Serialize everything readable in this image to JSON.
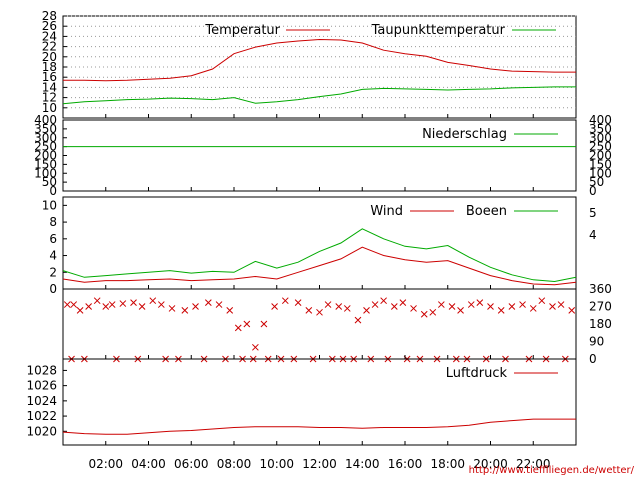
{
  "chart_data": [
    {
      "type": "line",
      "panel": "temperature",
      "ylim": [
        8,
        28
      ],
      "yticks": [
        "28",
        "26",
        "24",
        "22",
        "20",
        "18",
        "16",
        "14",
        "12",
        "10"
      ],
      "grid": true,
      "legend_position": "top",
      "series": [
        {
          "name": "Temperatur",
          "color": "#cc0000",
          "x": [
            0,
            1,
            2,
            3,
            4,
            5,
            6,
            7,
            8,
            9,
            10,
            11,
            12,
            13,
            14,
            15,
            16,
            17,
            18,
            19,
            20,
            21,
            22,
            23,
            24
          ],
          "values": [
            15.4,
            15.4,
            15.3,
            15.4,
            15.6,
            15.8,
            16.3,
            17.6,
            20.6,
            21.9,
            22.7,
            23.1,
            23.4,
            23.3,
            22.7,
            21.3,
            20.6,
            20.1,
            18.9,
            18.3,
            17.6,
            17.2,
            17.1,
            17.0,
            17.0
          ]
        },
        {
          "name": "Taupunkttemperatur",
          "color": "#00aa00",
          "x": [
            0,
            1,
            2,
            3,
            4,
            5,
            6,
            7,
            8,
            9,
            10,
            11,
            12,
            13,
            14,
            15,
            16,
            17,
            18,
            19,
            20,
            21,
            22,
            23,
            24
          ],
          "values": [
            10.8,
            11.2,
            11.4,
            11.6,
            11.7,
            11.9,
            11.8,
            11.6,
            12.0,
            10.9,
            11.2,
            11.6,
            12.2,
            12.7,
            13.6,
            13.8,
            13.7,
            13.6,
            13.5,
            13.6,
            13.7,
            13.9,
            14.0,
            14.1,
            14.1
          ]
        }
      ]
    },
    {
      "type": "line",
      "panel": "precipitation",
      "ylim": [
        0,
        400
      ],
      "yticks": [
        "400",
        "350",
        "300",
        "250",
        "200",
        "150",
        "100",
        "50",
        "0"
      ],
      "legend_position": "top",
      "series": [
        {
          "name": "Niederschlag",
          "color": "#00aa00",
          "x": [
            0,
            24
          ],
          "values": [
            250,
            250
          ]
        }
      ]
    },
    {
      "type": "line",
      "panel": "wind",
      "ylim": [
        0,
        11
      ],
      "yticks": [
        "10",
        "8",
        "6",
        "4",
        "2",
        "0"
      ],
      "yticks_right": [
        "5",
        "4"
      ],
      "legend_position": "top",
      "series": [
        {
          "name": "Wind",
          "color": "#cc0000",
          "x": [
            0,
            1,
            2,
            3,
            4,
            5,
            6,
            7,
            8,
            9,
            10,
            11,
            12,
            13,
            14,
            15,
            16,
            17,
            18,
            19,
            20,
            21,
            22,
            23,
            24
          ],
          "values": [
            1.2,
            0.8,
            1.0,
            1.0,
            1.1,
            1.2,
            1.0,
            1.1,
            1.2,
            1.5,
            1.2,
            2.0,
            2.8,
            3.6,
            5.0,
            4.0,
            3.5,
            3.2,
            3.4,
            2.5,
            1.6,
            1.0,
            0.6,
            0.5,
            0.8
          ]
        },
        {
          "name": "Boeen",
          "color": "#00aa00",
          "x": [
            0,
            1,
            2,
            3,
            4,
            5,
            6,
            7,
            8,
            9,
            10,
            11,
            12,
            13,
            14,
            15,
            16,
            17,
            18,
            19,
            20,
            21,
            22,
            23,
            24
          ],
          "values": [
            2.2,
            1.4,
            1.6,
            1.8,
            2.0,
            2.2,
            1.9,
            2.1,
            2.0,
            3.3,
            2.5,
            3.2,
            4.5,
            5.5,
            7.2,
            6.0,
            5.1,
            4.8,
            5.2,
            3.8,
            2.6,
            1.7,
            1.1,
            0.9,
            1.4
          ]
        }
      ]
    },
    {
      "type": "scatter",
      "panel": "wind_direction",
      "ylim": [
        0,
        360
      ],
      "yticks_right": [
        "360",
        "270",
        "180",
        "90",
        "0"
      ],
      "series": [
        {
          "name": "",
          "color": "#cc0000",
          "marker": "x",
          "x": [
            0.2,
            0.5,
            0.8,
            1.2,
            1.6,
            2.0,
            2.3,
            2.8,
            3.3,
            3.7,
            4.2,
            4.6,
            5.1,
            5.7,
            6.2,
            6.8,
            7.3,
            7.8,
            8.2,
            8.6,
            9.0,
            9.4,
            9.9,
            10.4,
            11.0,
            11.5,
            12.0,
            12.4,
            12.9,
            13.3,
            13.8,
            14.2,
            14.6,
            15.0,
            15.5,
            15.9,
            16.4,
            16.9,
            17.3,
            17.7,
            18.2,
            18.6,
            19.1,
            19.5,
            20.0,
            20.5,
            21.0,
            21.5,
            22.0,
            22.4,
            22.9,
            23.3,
            23.8,
            0.4,
            1.0,
            2.5,
            3.5,
            4.8,
            5.4,
            6.6,
            7.6,
            8.4,
            8.9,
            9.6,
            10.2,
            10.8,
            11.7,
            12.6,
            13.1,
            13.6,
            14.4,
            15.2,
            16.1,
            16.7,
            17.5,
            18.4,
            18.9,
            19.8,
            20.7,
            21.8,
            22.6,
            23.5
          ],
          "values": [
            280,
            280,
            250,
            270,
            300,
            270,
            280,
            285,
            290,
            270,
            300,
            280,
            260,
            250,
            270,
            290,
            280,
            250,
            160,
            180,
            60,
            180,
            270,
            300,
            290,
            250,
            240,
            280,
            270,
            260,
            200,
            250,
            280,
            300,
            270,
            290,
            260,
            230,
            240,
            280,
            270,
            250,
            280,
            290,
            270,
            250,
            270,
            280,
            260,
            300,
            270,
            280,
            250,
            0,
            0,
            0,
            0,
            0,
            0,
            0,
            0,
            0,
            0,
            0,
            0,
            0,
            0,
            0,
            0,
            0,
            0,
            0,
            0,
            0,
            0,
            0,
            0,
            0,
            0,
            0,
            0,
            0
          ]
        }
      ]
    },
    {
      "type": "line",
      "panel": "pressure",
      "ylim": [
        1018.2,
        1029.5
      ],
      "yticks": [
        "1028",
        "1026",
        "1024",
        "1022",
        "1020"
      ],
      "legend_position": "top",
      "series": [
        {
          "name": "Luftdruck",
          "color": "#cc0000",
          "x": [
            0,
            1,
            2,
            3,
            4,
            5,
            6,
            7,
            8,
            9,
            10,
            11,
            12,
            13,
            14,
            15,
            16,
            17,
            18,
            19,
            20,
            21,
            22,
            23,
            24
          ],
          "values": [
            1019.9,
            1019.7,
            1019.6,
            1019.6,
            1019.8,
            1020.0,
            1020.1,
            1020.3,
            1020.5,
            1020.6,
            1020.6,
            1020.6,
            1020.5,
            1020.5,
            1020.4,
            1020.5,
            1020.5,
            1020.5,
            1020.6,
            1020.8,
            1021.2,
            1021.4,
            1021.6,
            1021.6,
            1021.6
          ]
        }
      ]
    }
  ],
  "xaxis": {
    "range": [
      0,
      24
    ],
    "ticks": [
      {
        "v": 2,
        "label": "02:00"
      },
      {
        "v": 4,
        "label": "04:00"
      },
      {
        "v": 6,
        "label": "06:00"
      },
      {
        "v": 8,
        "label": "08:00"
      },
      {
        "v": 10,
        "label": "10:00"
      },
      {
        "v": 12,
        "label": "12:00"
      },
      {
        "v": 14,
        "label": "14:00"
      },
      {
        "v": 16,
        "label": "16:00"
      },
      {
        "v": 18,
        "label": "18:00"
      },
      {
        "v": 20,
        "label": "20:00"
      },
      {
        "v": 22,
        "label": "22:00"
      }
    ]
  },
  "footer": {
    "url": "http://www.tiefflliegen.de/wetter/"
  }
}
